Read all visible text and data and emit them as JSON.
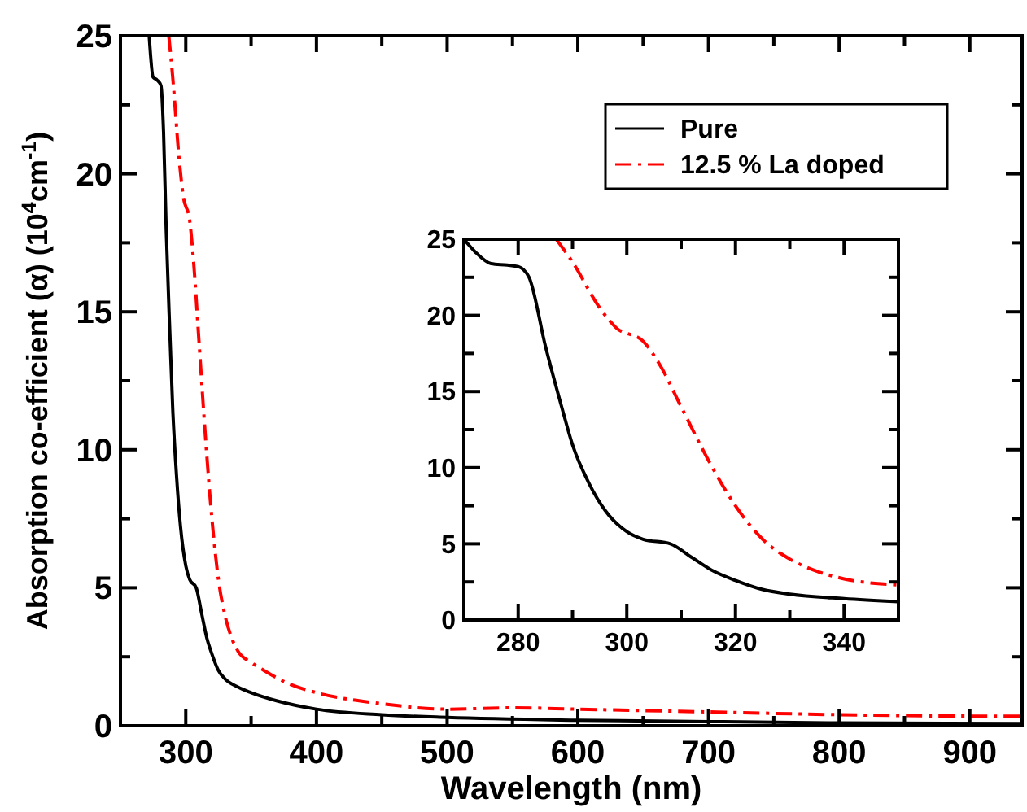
{
  "chart_data": [
    {
      "type": "line",
      "xlabel": "Wavelength (nm)",
      "ylabel": "Absorption co-efficient (α) (10$^{4}$cm$^{-1}$)",
      "xlim": [
        250,
        940
      ],
      "ylim": [
        0,
        25
      ],
      "xticks": [
        {
          "value": 250,
          "label": null
        },
        300,
        {
          "value": 350,
          "label": null
        },
        400,
        {
          "value": 450,
          "label": null
        },
        500,
        {
          "value": 550,
          "label": null
        },
        600,
        {
          "value": 650,
          "label": null
        },
        700,
        {
          "value": 750,
          "label": null
        },
        800,
        {
          "value": 850,
          "label": null
        },
        900
      ],
      "yticks": [
        0,
        {
          "value": 2.5,
          "label": null
        },
        5,
        {
          "value": 7.5,
          "label": null
        },
        10,
        {
          "value": 12.5,
          "label": null
        },
        15,
        {
          "value": 17.5,
          "label": null
        },
        20,
        {
          "value": 22.5,
          "label": null
        },
        25
      ],
      "grid": false,
      "legend": "top right",
      "series": [
        {
          "name": "Pure",
          "color": "#000000",
          "line_style": "solid",
          "x": [
            272,
            275,
            278,
            281,
            283,
            285,
            288,
            290,
            293,
            296,
            300,
            303,
            308,
            312,
            316,
            320,
            325,
            330,
            340,
            350,
            370,
            400,
            450,
            500,
            600,
            700,
            800,
            940
          ],
          "values": [
            25,
            23.5,
            23.4,
            23.2,
            21.5,
            18,
            14,
            11.5,
            9,
            7.2,
            5.8,
            5.3,
            5.0,
            4.1,
            3.2,
            2.6,
            2.0,
            1.7,
            1.4,
            1.2,
            0.9,
            0.6,
            0.4,
            0.3,
            0.2,
            0.15,
            0.1,
            0.08
          ]
        },
        {
          "name": "12.5 % La doped",
          "color": "#ff0000",
          "line_style": "dashdot",
          "x": [
            287,
            290,
            295,
            298,
            303,
            306,
            310,
            315,
            320,
            325,
            330,
            335,
            340,
            350,
            360,
            380,
            400,
            450,
            500,
            550,
            600,
            700,
            800,
            900,
            940
          ],
          "values": [
            25,
            23.5,
            20.5,
            19.2,
            18.3,
            16.8,
            14,
            10.5,
            7.5,
            5.3,
            4,
            3.2,
            2.7,
            2.3,
            2.0,
            1.5,
            1.2,
            0.8,
            0.6,
            0.65,
            0.6,
            0.5,
            0.4,
            0.35,
            0.35
          ]
        }
      ]
    },
    {
      "type": "line",
      "xlim": [
        270,
        350
      ],
      "ylim": [
        0,
        25
      ],
      "xticks": [
        {
          "value": 270,
          "label": null
        },
        280,
        {
          "value": 290,
          "label": null
        },
        300,
        {
          "value": 310,
          "label": null
        },
        320,
        {
          "value": 330,
          "label": null
        },
        340,
        {
          "value": 350,
          "label": null
        }
      ],
      "yticks": [
        0,
        {
          "value": 2.5,
          "label": null
        },
        5,
        {
          "value": 7.5,
          "label": null
        },
        10,
        {
          "value": 12.5,
          "label": null
        },
        15,
        {
          "value": 17.5,
          "label": null
        },
        20,
        {
          "value": 22.5,
          "label": null
        },
        25
      ],
      "grid": false,
      "series": [
        {
          "color": "#000000",
          "line_style": "solid",
          "x": [
            270,
            272,
            275,
            278,
            280,
            282,
            285,
            288,
            290,
            293,
            296,
            300,
            303,
            308,
            312,
            316,
            320,
            325,
            330,
            340,
            350
          ],
          "values": [
            25,
            24.2,
            23.4,
            23.3,
            23.2,
            22.5,
            18,
            14,
            11.5,
            9,
            7.2,
            5.8,
            5.3,
            5.0,
            4.1,
            3.2,
            2.6,
            2.0,
            1.7,
            1.4,
            1.2
          ]
        },
        {
          "color": "#ff0000",
          "line_style": "dashdot",
          "x": [
            287,
            290,
            295,
            298,
            303,
            306,
            310,
            315,
            320,
            325,
            330,
            335,
            340,
            350
          ],
          "values": [
            25,
            23.5,
            20.5,
            19.2,
            18.3,
            16.8,
            14,
            10.5,
            7.5,
            5.3,
            4,
            3.2,
            2.7,
            2.3
          ]
        }
      ]
    }
  ]
}
